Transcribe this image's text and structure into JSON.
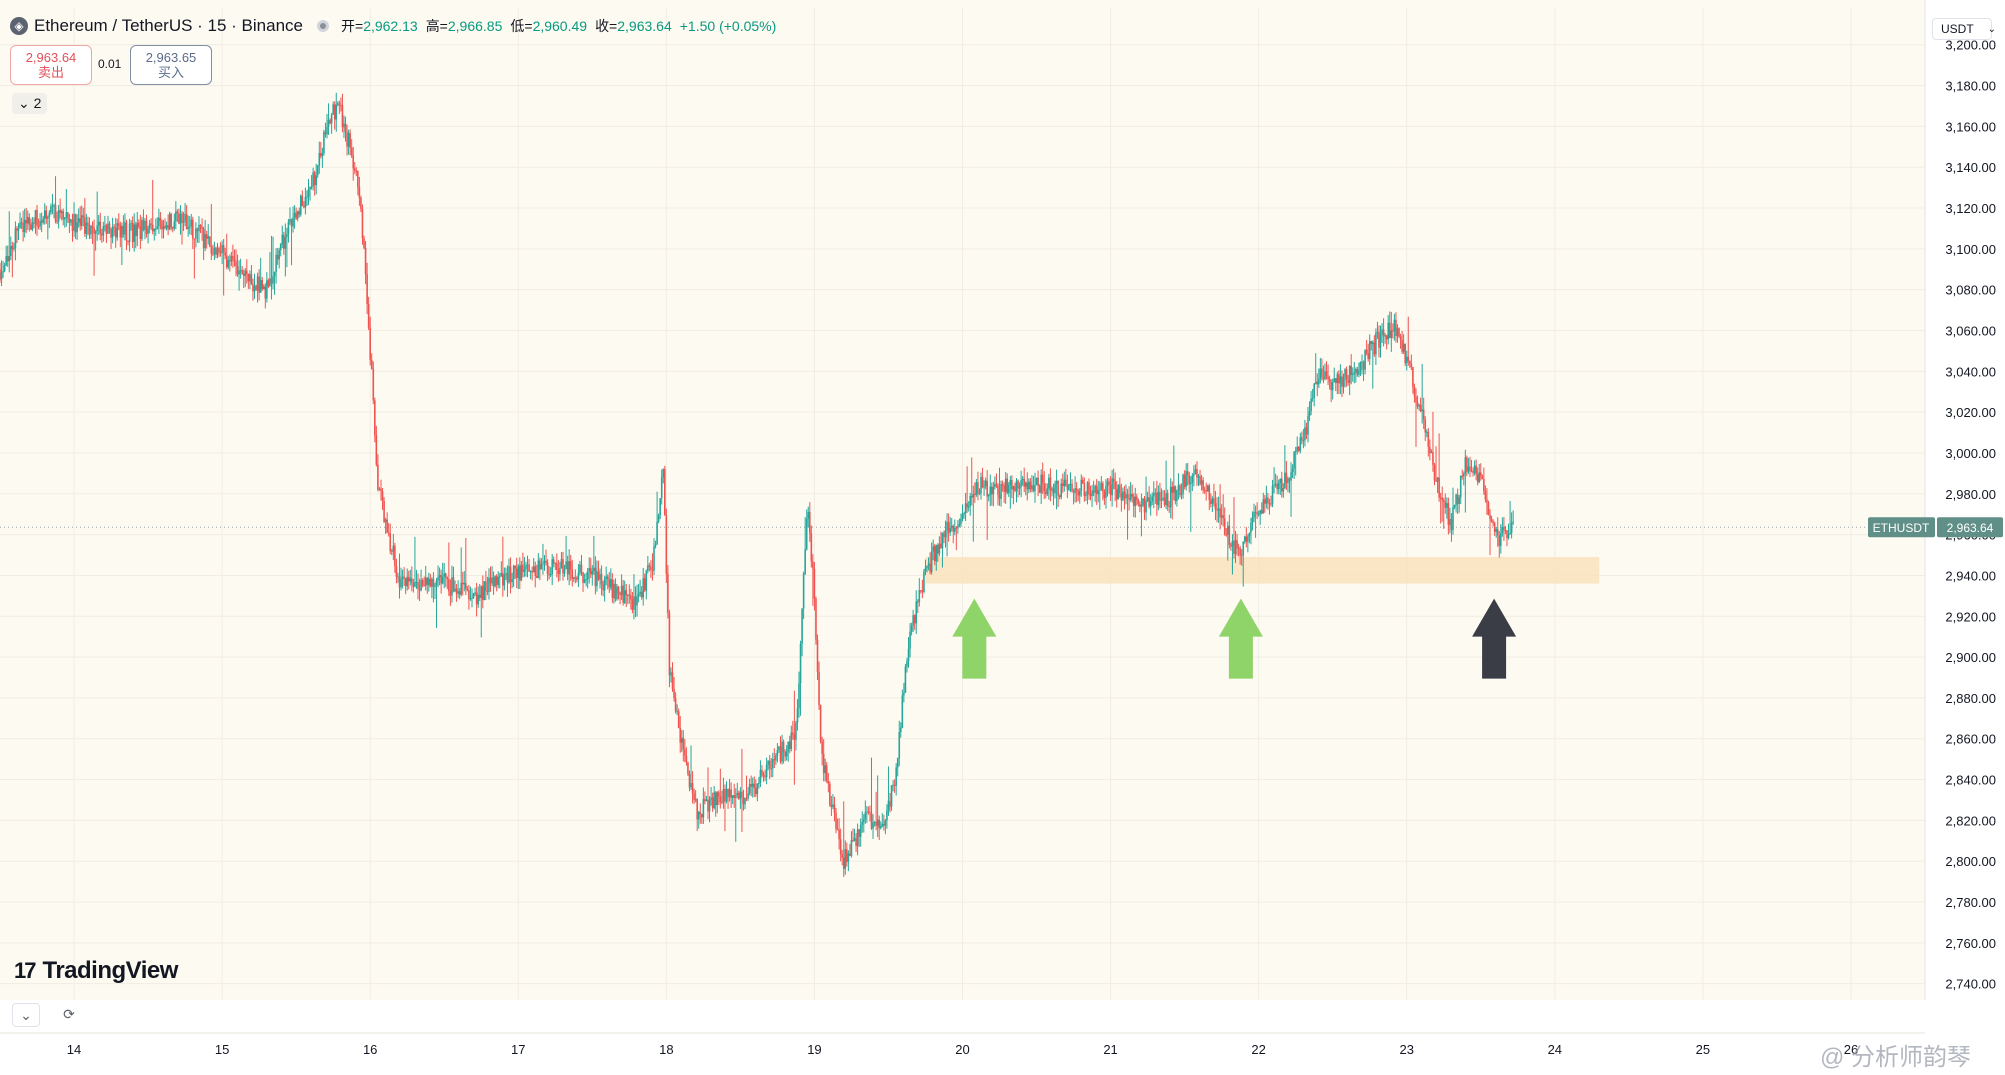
{
  "header": {
    "symbol_icon": "ethereum-icon",
    "title": "Ethereum / TetherUS · 15 · Binance",
    "ohlc": [
      {
        "label": "开=",
        "value": "2,962.13"
      },
      {
        "label": "高=",
        "value": "2,966.85"
      },
      {
        "label": "低=",
        "value": "2,960.49"
      },
      {
        "label": "收=",
        "value": "2,963.64"
      }
    ],
    "change": "+1.50 (+0.05%)"
  },
  "trade": {
    "sell_price": "2,963.64",
    "sell_label": "卖出",
    "spread": "0.01",
    "buy_price": "2,963.65",
    "buy_label": "买入"
  },
  "indicators_toggle": "2",
  "currency_unit": "USDT",
  "brand": "TradingView",
  "watermark": "@ 分析师韵琴",
  "colors": {
    "up": "#26a69a",
    "down": "#ef5350",
    "background": "#fdfaf2",
    "support_zone": "#f9e2bf",
    "arrow_green": "#8fd468",
    "arrow_dark": "#3a3d45",
    "price_tag": "#5f8f86"
  },
  "chart_data": {
    "type": "candlestick",
    "symbol": "ETHUSDT",
    "interval_minutes": 15,
    "x_tick_labels": [
      "14",
      "15",
      "16",
      "17",
      "18",
      "19",
      "20",
      "21",
      "22",
      "23",
      "24",
      "25",
      "26"
    ],
    "y_tick_labels": [
      "3,200.00",
      "3,180.00",
      "3,160.00",
      "3,140.00",
      "3,120.00",
      "3,100.00",
      "3,080.00",
      "3,060.00",
      "3,040.00",
      "3,020.00",
      "3,000.00",
      "2,980.00",
      "2,960.00",
      "2,940.00",
      "2,920.00",
      "2,900.00",
      "2,880.00",
      "2,860.00",
      "2,840.00",
      "2,820.00",
      "2,800.00",
      "2,780.00",
      "2,760.00",
      "2,740.00"
    ],
    "ylim": [
      2732,
      3218
    ],
    "xlim": [
      13.5,
      26.5
    ],
    "last_price": 2963.64,
    "last_price_label": "2,963.64",
    "price_tag_symbol": "ETHUSDT",
    "path_x": [
      13.5,
      13.65,
      13.85,
      14.1,
      14.4,
      14.7,
      15.0,
      15.15,
      15.3,
      15.45,
      15.55,
      15.65,
      15.72,
      15.8,
      15.86,
      15.92,
      15.96,
      16.0,
      16.05,
      16.2,
      16.45,
      16.7,
      16.95,
      17.2,
      17.5,
      17.8,
      17.92,
      17.98,
      18.02,
      18.1,
      18.2,
      18.35,
      18.55,
      18.75,
      18.88,
      18.95,
      19.0,
      19.05,
      19.2,
      19.35,
      19.45,
      19.55,
      19.62,
      19.72,
      19.8,
      19.85,
      19.92,
      20.0,
      20.1,
      20.25,
      20.5,
      20.75,
      21.0,
      21.25,
      21.4,
      21.55,
      21.72,
      21.8,
      21.88,
      21.95,
      22.05,
      22.2,
      22.32,
      22.4,
      22.5,
      22.65,
      22.8,
      22.92,
      23.0,
      23.1,
      23.2,
      23.3,
      23.4,
      23.5,
      23.55,
      23.62,
      23.72
    ],
    "path_close": [
      3090,
      3112,
      3118,
      3110,
      3108,
      3115,
      3098,
      3085,
      3080,
      3112,
      3125,
      3140,
      3165,
      3168,
      3150,
      3130,
      3100,
      3050,
      2985,
      2935,
      2938,
      2930,
      2940,
      2945,
      2940,
      2925,
      2950,
      2995,
      2895,
      2860,
      2825,
      2830,
      2833,
      2850,
      2865,
      2975,
      2930,
      2850,
      2800,
      2820,
      2815,
      2840,
      2900,
      2935,
      2950,
      2955,
      2965,
      2970,
      2985,
      2982,
      2985,
      2982,
      2983,
      2975,
      2978,
      2990,
      2975,
      2958,
      2952,
      2968,
      2975,
      2990,
      3010,
      3040,
      3035,
      3040,
      3055,
      3063,
      3045,
      3020,
      2985,
      2965,
      2995,
      2985,
      2975,
      2958,
      2963.64
    ],
    "support_zone": {
      "from": 2936,
      "to": 2949,
      "x_start": 19.75,
      "x_end": 24.3
    },
    "annotations": [
      {
        "type": "arrow_up",
        "x": 20.08,
        "color": "green"
      },
      {
        "type": "arrow_up",
        "x": 21.88,
        "color": "green"
      },
      {
        "type": "arrow_up",
        "x": 23.59,
        "color": "dark"
      }
    ]
  }
}
